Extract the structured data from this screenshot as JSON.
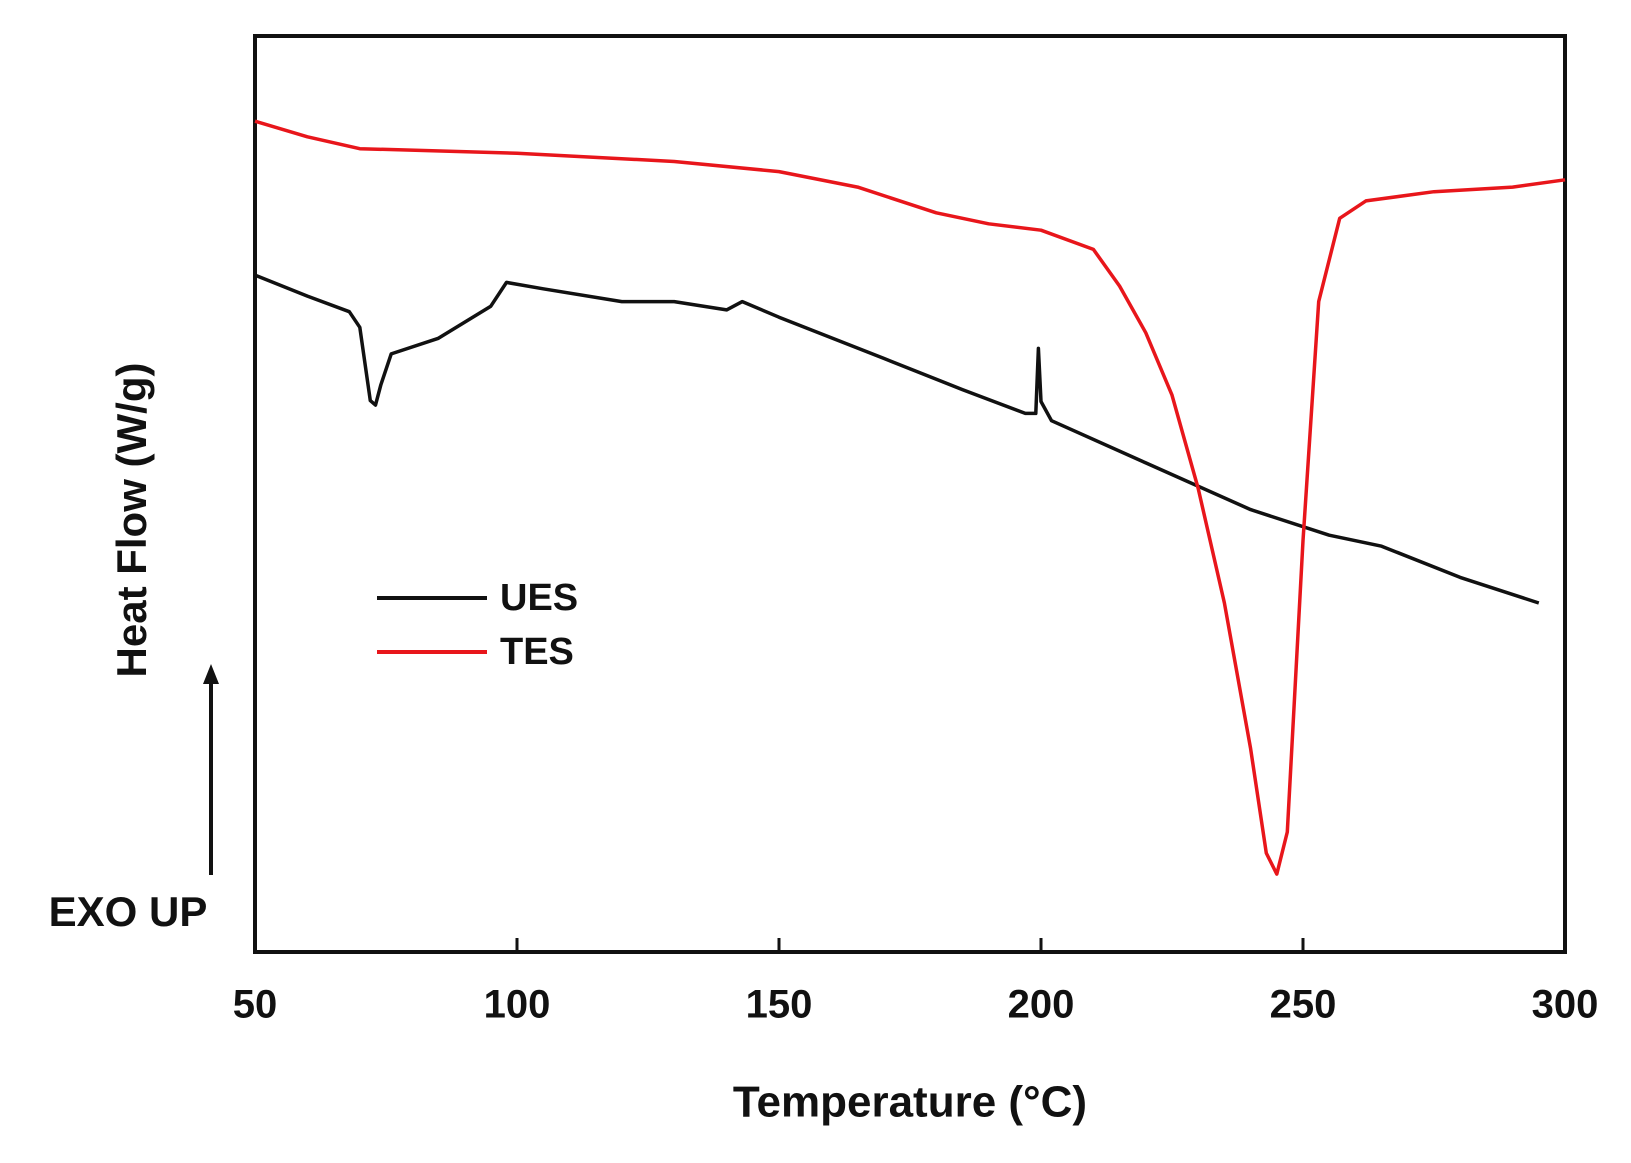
{
  "chart_data": {
    "type": "line",
    "xlabel": "Temperature (°C)",
    "ylabel": "Heat Flow (W/g)",
    "annotation": "EXO UP",
    "xlim": [
      50,
      300
    ],
    "xticks": [
      50,
      100,
      150,
      200,
      250,
      300
    ],
    "ylim": [
      0,
      100
    ],
    "series": [
      {
        "name": "UES",
        "color": "#111111",
        "x": [
          50,
          60,
          68,
          70,
          72,
          73,
          74,
          76,
          85,
          95,
          98,
          105,
          120,
          130,
          140,
          143,
          150,
          170,
          185,
          197,
          199,
          199.5,
          200,
          202,
          220,
          240,
          255,
          265,
          280,
          295
        ],
        "values": [
          73.9,
          71.6,
          69.9,
          68.2,
          60.2,
          59.7,
          61.9,
          65.3,
          67.0,
          70.5,
          73.1,
          72.4,
          71.0,
          71.0,
          70.1,
          71.0,
          69.3,
          64.8,
          61.4,
          58.8,
          58.8,
          65.9,
          60.1,
          58.0,
          53.4,
          48.3,
          45.5,
          44.3,
          40.9,
          38.1
        ]
      },
      {
        "name": "TES",
        "color": "#e8161b",
        "x": [
          50,
          60,
          70,
          100,
          130,
          150,
          165,
          180,
          190,
          200,
          210,
          215,
          220,
          225,
          230,
          235,
          240,
          243,
          245,
          247,
          250,
          253,
          257,
          262,
          275,
          290,
          300
        ],
        "values": [
          90.7,
          89.0,
          87.7,
          87.2,
          86.3,
          85.2,
          83.5,
          80.7,
          79.5,
          78.8,
          76.7,
          72.7,
          67.6,
          60.8,
          50.6,
          38.1,
          22.2,
          10.8,
          8.5,
          13.1,
          44.9,
          71.0,
          80.1,
          82.0,
          83.0,
          83.5,
          84.3
        ]
      }
    ]
  }
}
